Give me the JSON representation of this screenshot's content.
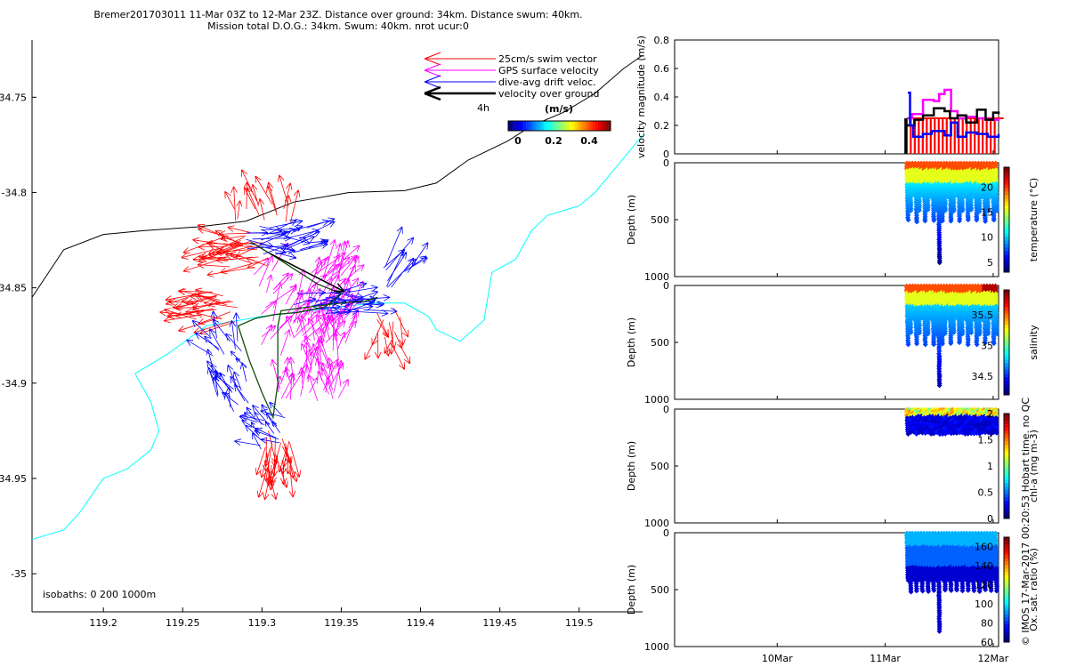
{
  "title": {
    "line1": "Bremer201703011 11-Mar 03Z to 12-Mar 23Z. Distance over ground: 34km. Distance swum: 40km.",
    "line2": "Mission total D.O.G.: 34km. Swum: 40km. nrot ucur:0"
  },
  "side_note": "© IMOS 17-Mar-2017 00:20:53 Hobart time. no QC",
  "colors": {
    "swim": "#ff0000",
    "gps": "#ff00ff",
    "drift": "#0000ff",
    "ground": "#000000",
    "isobath0": "#000000",
    "isobath200": "#00ffff",
    "track": "#008000"
  },
  "chart_data": [
    {
      "id": "map",
      "type": "scatter",
      "title": "",
      "xlabel": "",
      "ylabel": "",
      "xlim": [
        119.155,
        119.54
      ],
      "ylim": [
        -35.02,
        -34.72
      ],
      "xticks": [
        119.2,
        119.25,
        119.3,
        119.35,
        119.4,
        119.45,
        119.5
      ],
      "yticks": [
        -35,
        -34.95,
        -34.9,
        -34.85,
        -34.8,
        -34.75
      ],
      "xtick_labels": [
        "119.2",
        "119.25",
        "119.3",
        "119.35",
        "119.4",
        "119.45",
        "119.5"
      ],
      "ytick_labels": [
        "-35",
        "34.95",
        "-34.9",
        "34.85",
        "-34.8",
        "34.75"
      ],
      "legend": {
        "position": "top-right",
        "entries": [
          "25cm/s swim vector",
          "GPS surface velocity",
          "dive-avg drift veloc.",
          "velocity over ground"
        ],
        "scale_label": "4h",
        "colorbar_title": "(m/s)",
        "colorbar_ticks": [
          "0",
          "0.2",
          "0.4"
        ]
      },
      "isobath_note": "isobaths: 0   200  1000m",
      "coastline_0m": [
        [
          119.155,
          -34.855
        ],
        [
          119.175,
          -34.83
        ],
        [
          119.2,
          -34.822
        ],
        [
          119.225,
          -34.82
        ],
        [
          119.26,
          -34.818
        ],
        [
          119.29,
          -34.815
        ],
        [
          119.32,
          -34.805
        ],
        [
          119.355,
          -34.8
        ],
        [
          119.39,
          -34.799
        ],
        [
          119.41,
          -34.795
        ],
        [
          119.43,
          -34.783
        ],
        [
          119.455,
          -34.773
        ],
        [
          119.47,
          -34.765
        ],
        [
          119.49,
          -34.758
        ],
        [
          119.51,
          -34.748
        ],
        [
          119.528,
          -34.735
        ],
        [
          119.54,
          -34.728
        ]
      ],
      "isobath_200m": [
        [
          119.155,
          -34.982
        ],
        [
          119.175,
          -34.977
        ],
        [
          119.185,
          -34.968
        ],
        [
          119.2,
          -34.95
        ],
        [
          119.215,
          -34.945
        ],
        [
          119.23,
          -34.935
        ],
        [
          119.235,
          -34.925
        ],
        [
          119.23,
          -34.91
        ],
        [
          119.22,
          -34.895
        ],
        [
          119.24,
          -34.885
        ],
        [
          119.265,
          -34.87
        ],
        [
          119.3,
          -34.865
        ],
        [
          119.33,
          -34.862
        ],
        [
          119.37,
          -34.858
        ],
        [
          119.39,
          -34.858
        ],
        [
          119.405,
          -34.865
        ],
        [
          119.41,
          -34.872
        ],
        [
          119.425,
          -34.878
        ],
        [
          119.44,
          -34.867
        ],
        [
          119.445,
          -34.842
        ],
        [
          119.46,
          -34.835
        ],
        [
          119.47,
          -34.82
        ],
        [
          119.48,
          -34.812
        ],
        [
          119.5,
          -34.807
        ],
        [
          119.51,
          -34.8
        ],
        [
          119.52,
          -34.79
        ],
        [
          119.535,
          -34.775
        ],
        [
          119.54,
          -34.77
        ]
      ],
      "ground_track": [
        [
          119.293,
          -34.826
        ],
        [
          119.305,
          -34.832
        ],
        [
          119.32,
          -34.84
        ],
        [
          119.335,
          -34.848
        ],
        [
          119.35,
          -34.853
        ],
        [
          119.34,
          -34.86
        ],
        [
          119.322,
          -34.863
        ],
        [
          119.308,
          -34.864
        ],
        [
          119.296,
          -34.866
        ],
        [
          119.285,
          -34.87
        ],
        [
          119.292,
          -34.888
        ],
        [
          119.3,
          -34.905
        ],
        [
          119.307,
          -34.918
        ],
        [
          119.31,
          -34.9
        ],
        [
          119.31,
          -34.87
        ],
        [
          119.312,
          -34.862
        ],
        [
          119.33,
          -34.86
        ],
        [
          119.35,
          -34.858
        ],
        [
          119.365,
          -34.857
        ],
        [
          119.373,
          -34.855
        ]
      ],
      "net_ground_vector": {
        "from": [
          119.305,
          -34.832
        ],
        "to": [
          119.352,
          -34.852
        ]
      }
    },
    {
      "id": "velocity",
      "type": "line",
      "ylabel": "velocity magnitude (m/s)",
      "ylim": [
        0,
        0.8
      ],
      "yticks": [
        0,
        0.2,
        0.4,
        0.6,
        0.8
      ],
      "xlim": [
        0,
        3
      ],
      "series": [
        {
          "color": "magenta",
          "values": [
            [
              2.16,
              0.25
            ],
            [
              2.2,
              0.28
            ],
            [
              2.3,
              0.38
            ],
            [
              2.4,
              0.37
            ],
            [
              2.45,
              0.42
            ],
            [
              2.5,
              0.45
            ],
            [
              2.56,
              0.3
            ],
            [
              2.62,
              0.25
            ],
            [
              2.7,
              0.26
            ],
            [
              2.8,
              0.25
            ],
            [
              2.9,
              0.24
            ],
            [
              3.0,
              0.25
            ]
          ]
        },
        {
          "color": "black",
          "values": [
            [
              2.15,
              0.2
            ],
            [
              2.22,
              0.24
            ],
            [
              2.3,
              0.27
            ],
            [
              2.4,
              0.32
            ],
            [
              2.5,
              0.3
            ],
            [
              2.55,
              0.25
            ],
            [
              2.62,
              0.27
            ],
            [
              2.7,
              0.22
            ],
            [
              2.8,
              0.31
            ],
            [
              2.88,
              0.24
            ],
            [
              2.95,
              0.29
            ],
            [
              3.0,
              0.28
            ]
          ]
        },
        {
          "color": "blue",
          "values": [
            [
              2.16,
              0.43
            ],
            [
              2.18,
              0.2
            ],
            [
              2.21,
              0.12
            ],
            [
              2.3,
              0.14
            ],
            [
              2.38,
              0.16
            ],
            [
              2.5,
              0.13
            ],
            [
              2.56,
              0.22
            ],
            [
              2.62,
              0.12
            ],
            [
              2.7,
              0.15
            ],
            [
              2.8,
              0.14
            ],
            [
              2.9,
              0.12
            ],
            [
              3.0,
              0.14
            ]
          ]
        }
      ]
    },
    {
      "id": "temperature",
      "type": "scatter",
      "ylabel": "Depth (m)",
      "ylim": [
        1000,
        0
      ],
      "yticks": [
        0,
        500,
        1000
      ],
      "colorbar": {
        "label": "temperature (°C)",
        "ticks": [
          5,
          10,
          15,
          20
        ],
        "range": [
          3,
          24
        ]
      }
    },
    {
      "id": "salinity",
      "type": "scatter",
      "ylabel": "Depth (m)",
      "ylim": [
        1000,
        0
      ],
      "yticks": [
        0,
        500,
        1000
      ],
      "colorbar": {
        "label": "salinity",
        "ticks": [
          34.5,
          35,
          35.5
        ],
        "range": [
          34.2,
          35.9
        ]
      }
    },
    {
      "id": "chla",
      "type": "scatter",
      "ylabel": "Depth (m)",
      "ylim": [
        1000,
        0
      ],
      "yticks": [
        0,
        500,
        1000
      ],
      "colorbar": {
        "label": "chl-a (mg m-3)",
        "ticks": [
          0,
          0.5,
          1,
          1.5,
          2
        ],
        "range": [
          0,
          2
        ]
      }
    },
    {
      "id": "oxygen",
      "type": "scatter",
      "ylabel": "Depth (m)",
      "ylim": [
        1000,
        0
      ],
      "yticks": [
        0,
        500,
        1000
      ],
      "xticks": [
        "10Mar",
        "11Mar",
        "12Mar"
      ],
      "colorbar": {
        "label": "Ox. sat. ratio (%)",
        "ticks": [
          60,
          80,
          100,
          120,
          140,
          160
        ],
        "range": [
          60,
          170
        ]
      }
    }
  ]
}
